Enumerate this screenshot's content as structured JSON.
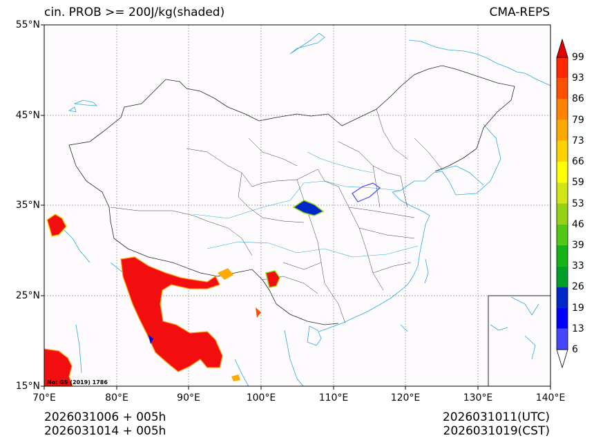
{
  "header": {
    "title": "cin. PROB >= 200J/kg(shaded)",
    "model": "CMA-REPS"
  },
  "map": {
    "lon_range": [
      70,
      140
    ],
    "lat_range": [
      15,
      55
    ],
    "lat_ticks": [
      {
        "value": 55,
        "label": "55°N"
      },
      {
        "value": 45,
        "label": "45°N"
      },
      {
        "value": 35,
        "label": "35°N"
      },
      {
        "value": 25,
        "label": "25°N"
      },
      {
        "value": 15,
        "label": "15°N"
      }
    ],
    "lon_ticks": [
      {
        "value": 70,
        "label": "70°E"
      },
      {
        "value": 80,
        "label": "80°E"
      },
      {
        "value": 90,
        "label": "90°E"
      },
      {
        "value": 100,
        "label": "100°E"
      },
      {
        "value": 110,
        "label": "110°E"
      },
      {
        "value": 120,
        "label": "120°E"
      },
      {
        "value": 130,
        "label": "130°E"
      },
      {
        "value": 140,
        "label": "140°E"
      }
    ],
    "map_approval_no": "No: GS (2019) 1786",
    "colors": {
      "border": "#222222",
      "water": "#2aa8d8",
      "grid": "#8c8c8c",
      "dominant_shading": "#f20e0e"
    }
  },
  "colorbar": {
    "levels": [
      "6",
      "13",
      "19",
      "26",
      "33",
      "39",
      "46",
      "53",
      "59",
      "66",
      "73",
      "79",
      "86",
      "93",
      "99"
    ],
    "colors": [
      "#a6a6ff",
      "#4646ff",
      "#0000ff",
      "#0028c8",
      "#00a028",
      "#14b414",
      "#50c814",
      "#96d214",
      "#d2e614",
      "#ffff00",
      "#ffd200",
      "#ffaa00",
      "#ff8200",
      "#ff5000",
      "#ff2800",
      "#e60000"
    ]
  },
  "footer": {
    "init_utc": "2026031006  +  005h",
    "init_cst": "2026031014  +  005h",
    "valid_utc": "2026031011(UTC)",
    "valid_cst": "2026031019(CST)"
  }
}
